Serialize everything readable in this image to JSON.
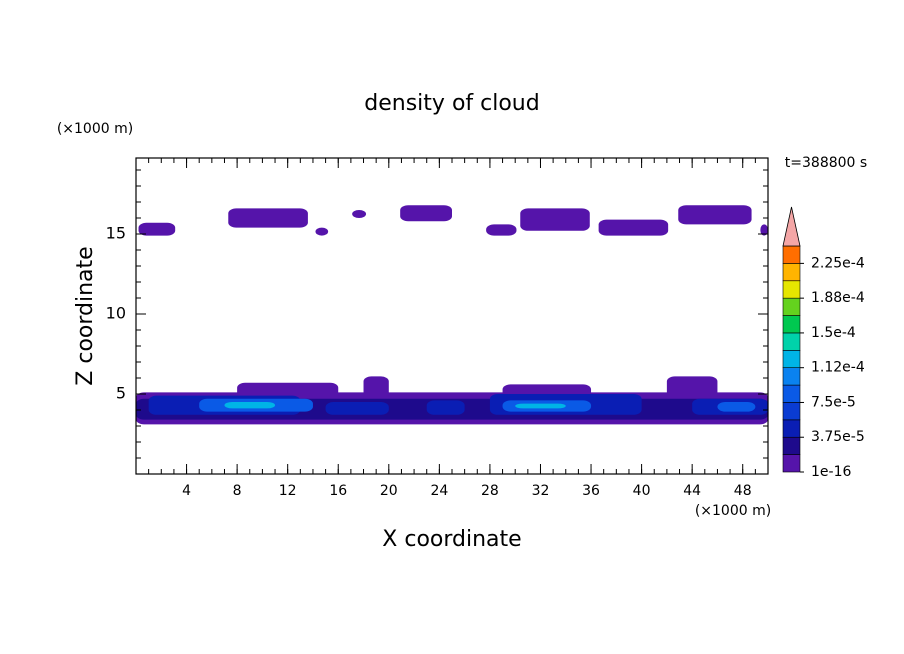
{
  "chart_data": {
    "type": "contour",
    "title": "density of cloud",
    "xlabel": "X coordinate",
    "ylabel": "Z coordinate",
    "xunit": "(×1000 m)",
    "yunit": "(×1000 m)",
    "annotation": "t=388800 s",
    "xlim": [
      0,
      50
    ],
    "ylim": [
      0,
      19.75
    ],
    "xticks": [
      4,
      8,
      12,
      16,
      20,
      24,
      28,
      32,
      36,
      40,
      44,
      48
    ],
    "yticks": [
      5,
      10,
      15
    ],
    "minor_step": 1,
    "colorbar": {
      "levels": [
        1e-16,
        1.875e-05,
        3.75e-05,
        5.625e-05,
        7.5e-05,
        9.375e-05,
        0.0001125,
        0.00013125,
        0.00015,
        0.00016875,
        0.0001875,
        0.00020625,
        0.000225,
        0.00024375
      ],
      "colors": [
        "#5514aa",
        "#1e0a8c",
        "#0a1eb4",
        "#0a3cd2",
        "#0a5ae6",
        "#0a82f0",
        "#00b4e6",
        "#00d2aa",
        "#00c850",
        "#64d21e",
        "#e6e600",
        "#ffb400",
        "#ff6e00",
        "#e61e1e"
      ],
      "extend_color": "#f4a6a6",
      "ticks": [
        {
          "value": 1e-16,
          "label": "1e-16"
        },
        {
          "value": 3.75e-05,
          "label": "3.75e-5"
        },
        {
          "value": 7.5e-05,
          "label": "7.5e-5"
        },
        {
          "value": 0.0001125,
          "label": "1.12e-4"
        },
        {
          "value": 0.00015,
          "label": "1.5e-4"
        },
        {
          "value": 0.0001875,
          "label": "1.88e-4"
        },
        {
          "value": 0.000225,
          "label": "2.25e-4"
        }
      ]
    },
    "regions": [
      {
        "x": [
          0.2,
          3.1
        ],
        "z": [
          14.9,
          15.7
        ],
        "value": 1e-05
      },
      {
        "x": [
          7.3,
          13.6
        ],
        "z": [
          15.4,
          16.6
        ],
        "value": 1e-05
      },
      {
        "x": [
          14.2,
          15.2
        ],
        "z": [
          14.9,
          15.4
        ],
        "value": 1e-05
      },
      {
        "x": [
          17.1,
          18.2
        ],
        "z": [
          16,
          16.5
        ],
        "value": 1e-05
      },
      {
        "x": [
          20.9,
          25
        ],
        "z": [
          15.8,
          16.8
        ],
        "value": 1e-05
      },
      {
        "x": [
          27.7,
          30.1
        ],
        "z": [
          14.9,
          15.6
        ],
        "value": 1e-05
      },
      {
        "x": [
          30.4,
          35.9
        ],
        "z": [
          15.2,
          16.6
        ],
        "value": 1e-05
      },
      {
        "x": [
          36.6,
          42.1
        ],
        "z": [
          14.9,
          15.9
        ],
        "value": 1e-05
      },
      {
        "x": [
          42.9,
          48.7
        ],
        "z": [
          15.6,
          16.8
        ],
        "value": 1e-05
      },
      {
        "x": [
          49.4,
          50
        ],
        "z": [
          14.9,
          15.6
        ],
        "value": 1e-05
      },
      {
        "x": [
          0,
          50
        ],
        "z": [
          3.1,
          5.1
        ],
        "value": 1e-05
      },
      {
        "x": [
          8,
          16
        ],
        "z": [
          4.5,
          5.7
        ],
        "value": 1e-05
      },
      {
        "x": [
          18,
          20
        ],
        "z": [
          4.5,
          6.1
        ],
        "value": 1e-05
      },
      {
        "x": [
          29,
          36
        ],
        "z": [
          4.5,
          5.6
        ],
        "value": 1e-05
      },
      {
        "x": [
          42,
          46
        ],
        "z": [
          4.5,
          6.1
        ],
        "value": 1e-05
      },
      {
        "x": [
          0,
          50
        ],
        "z": [
          3.4,
          4.7
        ],
        "value": 3e-05
      },
      {
        "x": [
          1,
          13
        ],
        "z": [
          3.7,
          4.9
        ],
        "value": 5e-05
      },
      {
        "x": [
          15,
          20
        ],
        "z": [
          3.7,
          4.5
        ],
        "value": 5e-05
      },
      {
        "x": [
          23,
          26
        ],
        "z": [
          3.7,
          4.6
        ],
        "value": 5e-05
      },
      {
        "x": [
          28,
          40
        ],
        "z": [
          3.7,
          5
        ],
        "value": 5e-05
      },
      {
        "x": [
          44,
          50
        ],
        "z": [
          3.7,
          4.7
        ],
        "value": 5e-05
      },
      {
        "x": [
          5,
          14
        ],
        "z": [
          3.9,
          4.7
        ],
        "value": 8e-05
      },
      {
        "x": [
          29,
          36
        ],
        "z": [
          3.9,
          4.6
        ],
        "value": 8e-05
      },
      {
        "x": [
          46,
          49
        ],
        "z": [
          3.9,
          4.5
        ],
        "value": 8e-05
      },
      {
        "x": [
          7,
          11
        ],
        "z": [
          4.1,
          4.5
        ],
        "value": 0.000115
      },
      {
        "x": [
          30,
          34
        ],
        "z": [
          4.1,
          4.4
        ],
        "value": 0.000115
      }
    ]
  }
}
